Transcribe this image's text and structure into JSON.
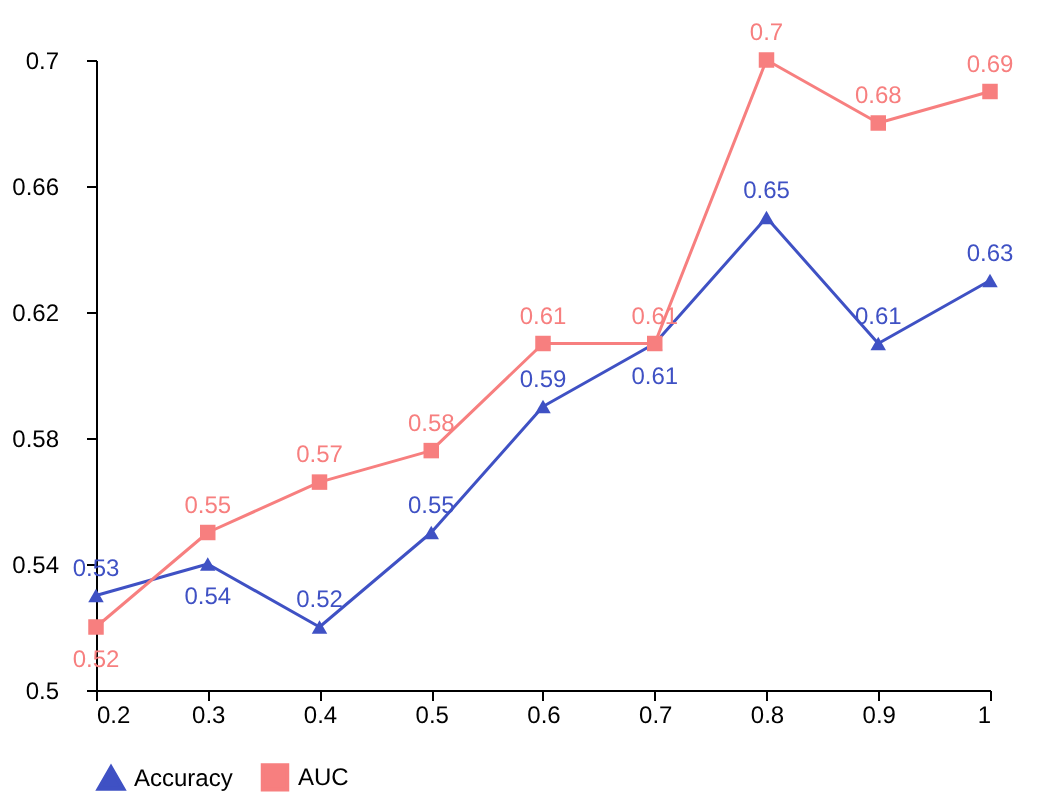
{
  "chart_data": {
    "type": "line",
    "x": [
      0.2,
      0.3,
      0.4,
      0.5,
      0.6,
      0.7,
      0.8,
      0.9,
      1
    ],
    "series": [
      {
        "name": "Accuracy",
        "color": "#3f51c4",
        "marker": "triangle",
        "values": [
          0.53,
          0.54,
          0.52,
          0.55,
          0.59,
          0.61,
          0.65,
          0.61,
          0.63
        ],
        "value_labels": [
          "0.53",
          "0.54",
          "0.52",
          "0.55",
          "0.59",
          "0.61",
          "0.65",
          "0.61",
          "0.63"
        ]
      },
      {
        "name": "AUC",
        "color": "#f77f7f",
        "marker": "square",
        "values": [
          0.52,
          0.55,
          0.566,
          0.576,
          0.61,
          0.61,
          0.7,
          0.68,
          0.69
        ],
        "value_labels": [
          "0.52",
          "0.55",
          "0.57",
          "0.58",
          "0.61",
          "0.61",
          "0.7",
          "0.68",
          "0.69"
        ]
      }
    ],
    "xlim": [
      0.2,
      1
    ],
    "xticks": [
      0.2,
      0.3,
      0.4,
      0.5,
      0.6,
      0.7,
      0.8,
      0.9,
      1
    ],
    "ylim": [
      0.5,
      0.7
    ],
    "yticks": [
      0.5,
      0.54,
      0.58,
      0.62,
      0.66,
      0.7
    ],
    "grid": false,
    "legend": "bottom",
    "line_style": "solid"
  }
}
